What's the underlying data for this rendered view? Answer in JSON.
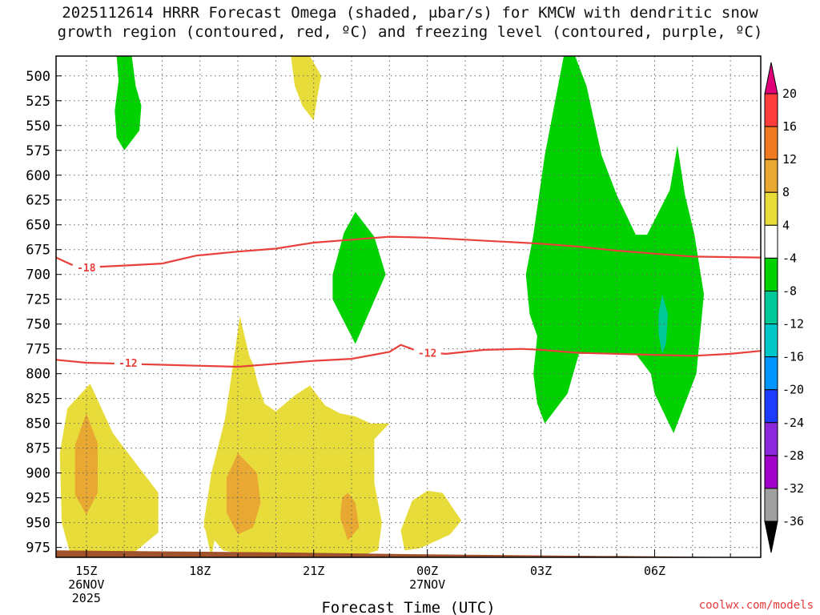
{
  "title_line1": "2025112614 HRRR Forecast Omega (shaded, μbar/s) for KMCW with dendritic snow",
  "title_line2": "growth region (contoured, red, ºC) and freezing level (contoured, purple, ºC)",
  "credit": "coolwx.com/models",
  "chart_data": {
    "type": "time-height cross section",
    "title": "2025112614 HRRR Forecast Omega (shaded, μbar/s) for KMCW with dendritic snow growth region (contoured, red, ºC) and freezing level (contoured, purple, ºC)",
    "xlabel": "Forecast Time (UTC)",
    "ylabel": "",
    "xlim_hours": [
      14.2,
      32.8
    ],
    "ylim_hpa": [
      985,
      480
    ],
    "y_ticks": [
      500,
      525,
      550,
      575,
      600,
      625,
      650,
      675,
      700,
      725,
      750,
      775,
      800,
      825,
      850,
      875,
      900,
      925,
      950,
      975
    ],
    "x_ticks": [
      {
        "hour": 15,
        "lines": [
          "15Z",
          "26NOV",
          "2025"
        ]
      },
      {
        "hour": 18,
        "lines": [
          "18Z"
        ]
      },
      {
        "hour": 21,
        "lines": [
          "21Z"
        ]
      },
      {
        "hour": 24,
        "lines": [
          "00Z",
          "27NOV"
        ]
      },
      {
        "hour": 27,
        "lines": [
          "03Z"
        ]
      },
      {
        "hour": 30,
        "lines": [
          "06Z"
        ]
      }
    ],
    "grid": true,
    "colorbar": {
      "labels": [
        "20",
        "16",
        "12",
        "8",
        "4",
        "-4",
        "-8",
        "-12",
        "-16",
        "-20",
        "-24",
        "-28",
        "-32",
        "-36"
      ],
      "colors": [
        "#ff3c3c",
        "#f07a22",
        "#e8a832",
        "#e8dc3a",
        "#ffffff",
        "#00d200",
        "#00c896",
        "#00c8c8",
        "#0096ff",
        "#1e3cff",
        "#8c28dc",
        "#a000c8",
        "#a0a0a0"
      ],
      "top_arrow": "#e0007a",
      "bottom_arrow": "#000000"
    },
    "shaded_regions": [
      {
        "class": "+4 to +8",
        "color": "#e8dc3a",
        "points": [
          [
            15.8,
            985
          ],
          [
            16.2,
            982
          ],
          [
            16.9,
            960
          ],
          [
            16.9,
            920
          ],
          [
            16.3,
            890
          ],
          [
            15.7,
            860
          ],
          [
            15.1,
            810
          ],
          [
            14.5,
            835
          ],
          [
            14.3,
            880
          ],
          [
            14.35,
            950
          ],
          [
            14.6,
            985
          ]
        ]
      },
      {
        "class": "+4 to +8",
        "color": "#e8dc3a",
        "points": [
          [
            18.3,
            985
          ],
          [
            18.1,
            950
          ],
          [
            18.3,
            900
          ],
          [
            18.7,
            840
          ],
          [
            19.0,
            760
          ],
          [
            19.4,
            790
          ],
          [
            19.9,
            870
          ],
          [
            19.5,
            900
          ],
          [
            19.0,
            830
          ]
        ]
      },
      {
        "class": "+4 to +8",
        "color": "#e8dc3a",
        "points": [
          [
            18.1,
            955
          ],
          [
            18.3,
            905
          ],
          [
            18.6,
            860
          ],
          [
            18.8,
            810
          ],
          [
            18.95,
            770
          ],
          [
            19.05,
            742
          ],
          [
            19.35,
            790
          ],
          [
            19.7,
            830
          ],
          [
            20.0,
            838
          ],
          [
            20.5,
            822
          ],
          [
            20.9,
            812
          ],
          [
            21.3,
            832
          ],
          [
            21.7,
            840
          ],
          [
            22.1,
            843
          ],
          [
            22.5,
            850
          ],
          [
            23.0,
            850
          ],
          [
            22.6,
            866
          ],
          [
            22.6,
            910
          ],
          [
            22.8,
            950
          ],
          [
            22.7,
            978
          ],
          [
            22.1,
            985
          ],
          [
            21.0,
            985
          ],
          [
            19.5,
            984
          ],
          [
            18.6,
            978
          ]
        ]
      },
      {
        "class": "+4 to +8",
        "color": "#e8dc3a",
        "points": [
          [
            23.4,
            978
          ],
          [
            23.3,
            958
          ],
          [
            23.6,
            928
          ],
          [
            24.0,
            918
          ],
          [
            24.4,
            920
          ],
          [
            24.9,
            948
          ],
          [
            24.6,
            962
          ],
          [
            23.8,
            976
          ]
        ]
      },
      {
        "class": "+4 to +8",
        "color": "#e8dc3a",
        "points": [
          [
            20.4,
            480
          ],
          [
            20.9,
            480
          ],
          [
            21.2,
            500
          ],
          [
            21.1,
            520
          ],
          [
            21.0,
            545
          ],
          [
            20.7,
            530
          ],
          [
            20.5,
            510
          ]
        ]
      },
      {
        "class": "+8 to +12",
        "color": "#e8a832",
        "points": [
          [
            15.0,
            840
          ],
          [
            15.3,
            870
          ],
          [
            15.3,
            920
          ],
          [
            15.0,
            942
          ],
          [
            14.7,
            922
          ],
          [
            14.7,
            872
          ]
        ]
      },
      {
        "class": "+8 to +12",
        "color": "#e8a832",
        "points": [
          [
            19.0,
            880
          ],
          [
            19.5,
            900
          ],
          [
            19.6,
            930
          ],
          [
            19.4,
            955
          ],
          [
            19.0,
            962
          ],
          [
            18.7,
            940
          ],
          [
            18.7,
            905
          ]
        ]
      },
      {
        "class": "+8 to +12",
        "color": "#e8a832",
        "points": [
          [
            21.9,
            920
          ],
          [
            22.1,
            930
          ],
          [
            22.2,
            955
          ],
          [
            21.9,
            968
          ],
          [
            21.7,
            945
          ],
          [
            21.75,
            925
          ]
        ]
      },
      {
        "class": "-4 to -8",
        "color": "#00d200",
        "points": [
          [
            15.8,
            480
          ],
          [
            16.2,
            480
          ],
          [
            16.3,
            510
          ],
          [
            16.45,
            530
          ],
          [
            16.4,
            555
          ],
          [
            16.2,
            565
          ],
          [
            16.0,
            575
          ],
          [
            15.8,
            562
          ],
          [
            15.75,
            535
          ],
          [
            15.85,
            505
          ]
        ]
      },
      {
        "class": "-4 to -8",
        "color": "#00d200",
        "points": [
          [
            21.5,
            700
          ],
          [
            21.8,
            658
          ],
          [
            22.1,
            637
          ],
          [
            22.6,
            662
          ],
          [
            22.9,
            700
          ],
          [
            22.5,
            735
          ],
          [
            22.1,
            770
          ],
          [
            21.7,
            740
          ],
          [
            21.5,
            725
          ]
        ]
      },
      {
        "class": "-4 to -8",
        "color": "#00d200",
        "points": [
          [
            26.8,
            660
          ],
          [
            27.1,
            580
          ],
          [
            27.6,
            480
          ],
          [
            27.9,
            480
          ],
          [
            28.2,
            510
          ],
          [
            28.6,
            580
          ],
          [
            29.0,
            620
          ],
          [
            29.5,
            660
          ],
          [
            29.8,
            660
          ],
          [
            30.4,
            615
          ],
          [
            30.6,
            570
          ],
          [
            30.8,
            620
          ],
          [
            31.05,
            660
          ],
          [
            31.3,
            720
          ],
          [
            31.1,
            800
          ],
          [
            30.5,
            860
          ],
          [
            30.0,
            820
          ],
          [
            29.9,
            800
          ],
          [
            29.5,
            780
          ],
          [
            28.9,
            780
          ],
          [
            28.0,
            780
          ],
          [
            27.7,
            820
          ],
          [
            27.1,
            850
          ],
          [
            26.9,
            830
          ],
          [
            26.8,
            800
          ],
          [
            26.9,
            762
          ],
          [
            26.7,
            740
          ],
          [
            26.6,
            700
          ],
          [
            26.8,
            660
          ]
        ]
      },
      {
        "class": "-8 to -12",
        "color": "#00c896",
        "points": [
          [
            30.1,
            740
          ],
          [
            30.2,
            720
          ],
          [
            30.35,
            740
          ],
          [
            30.3,
            770
          ],
          [
            30.2,
            780
          ],
          [
            30.1,
            760
          ]
        ]
      }
    ],
    "red_contours": [
      {
        "label": "-18",
        "points": [
          [
            14.2,
            683
          ],
          [
            14.6,
            690
          ],
          [
            15.0,
            693
          ],
          [
            16.0,
            691
          ],
          [
            17.0,
            689
          ],
          [
            17.9,
            681
          ],
          [
            19.0,
            677
          ],
          [
            20.0,
            674
          ],
          [
            21.0,
            668
          ],
          [
            22.0,
            665
          ],
          [
            23.0,
            662
          ],
          [
            24.0,
            663
          ],
          [
            25.0,
            665
          ],
          [
            26.0,
            667
          ],
          [
            27.0,
            669
          ],
          [
            28.0,
            672
          ],
          [
            29.0,
            676
          ],
          [
            30.0,
            679
          ],
          [
            31.0,
            682
          ],
          [
            32.8,
            683
          ]
        ]
      },
      {
        "label": "-12",
        "points": [
          [
            14.2,
            786
          ],
          [
            15.0,
            789
          ],
          [
            16.0,
            790
          ],
          [
            17.0,
            791
          ],
          [
            18.0,
            792
          ],
          [
            19.0,
            793
          ],
          [
            20.0,
            790
          ],
          [
            21.0,
            787
          ],
          [
            22.0,
            785
          ],
          [
            23.0,
            778
          ],
          [
            23.3,
            771
          ],
          [
            23.8,
            778
          ],
          [
            24.5,
            780
          ],
          [
            25.5,
            776
          ],
          [
            26.5,
            775
          ],
          [
            27.0,
            776
          ],
          [
            28.0,
            779
          ],
          [
            29.0,
            780
          ],
          [
            30.0,
            781
          ],
          [
            31.0,
            782
          ],
          [
            32.0,
            780
          ],
          [
            32.8,
            777
          ]
        ]
      }
    ],
    "contour_labels": [
      {
        "text": "-18",
        "hour": 15.0,
        "hpa": 693
      },
      {
        "text": "-12",
        "hour": 16.1,
        "hpa": 789
      },
      {
        "text": "-12",
        "hour": 24.0,
        "hpa": 779
      }
    ],
    "terrain": {
      "color": "#a0522d",
      "points": [
        [
          14.2,
          978
        ],
        [
          20.0,
          980
        ],
        [
          24.0,
          982
        ],
        [
          30.0,
          984
        ],
        [
          32.8,
          985
        ]
      ]
    }
  }
}
